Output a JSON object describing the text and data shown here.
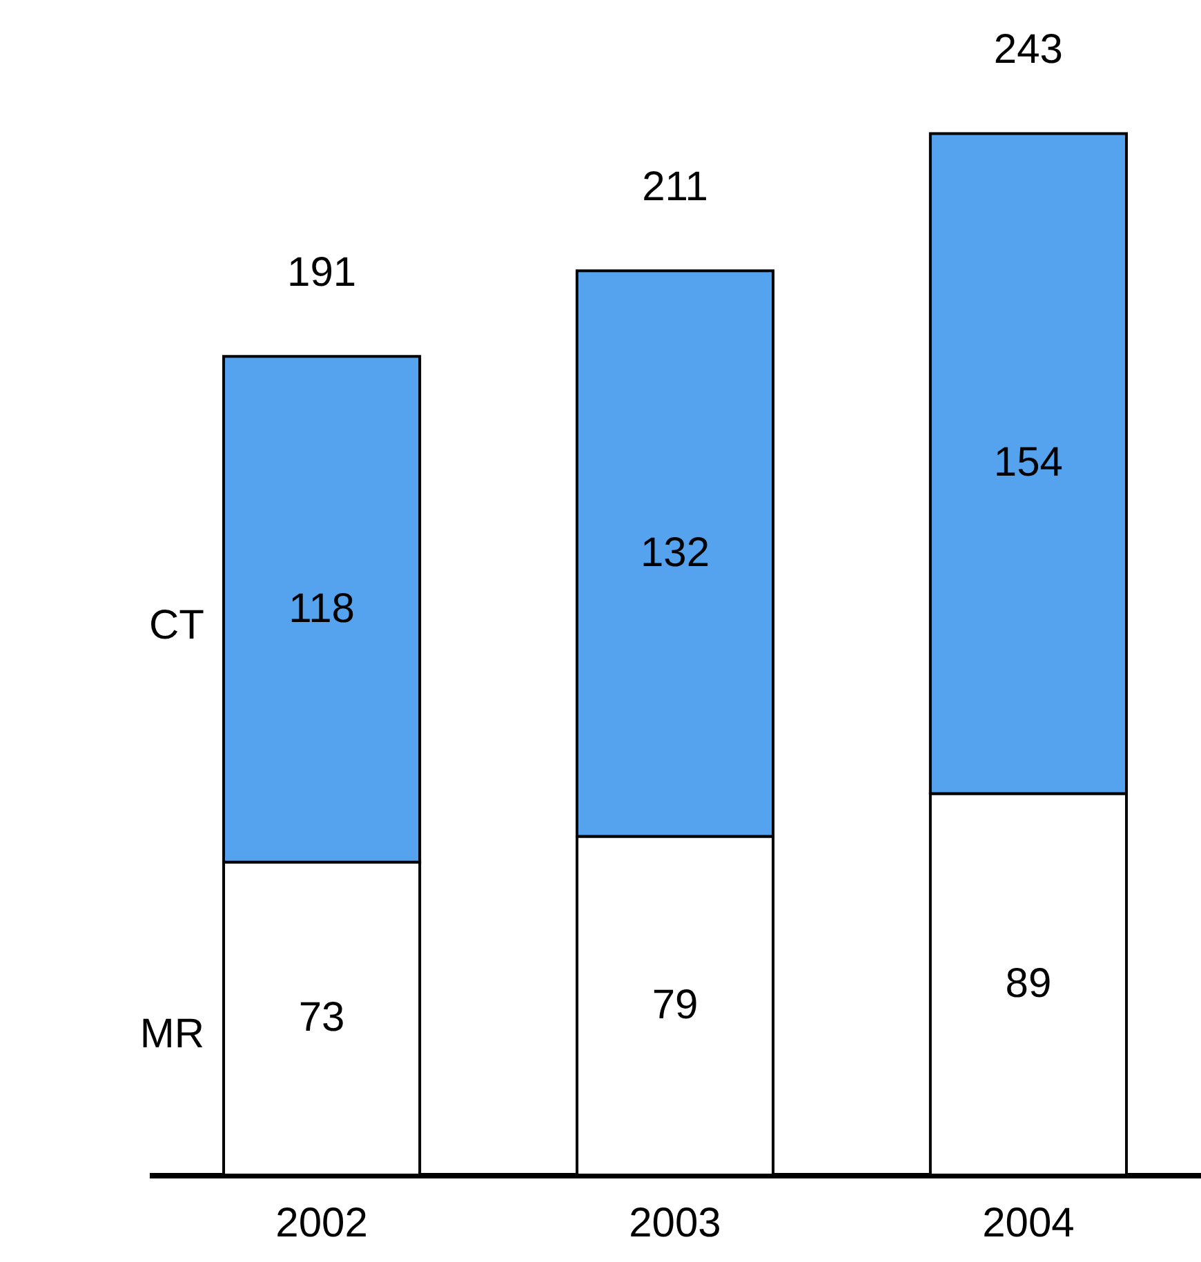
{
  "chart_data": {
    "type": "bar",
    "stacked": true,
    "categories": [
      "2002",
      "2003",
      "2004"
    ],
    "series": [
      {
        "name": "MR",
        "color": "#ffffff",
        "values": [
          73,
          79,
          89
        ]
      },
      {
        "name": "CT",
        "color": "#55a3ee",
        "values": [
          118,
          132,
          154
        ]
      }
    ],
    "data_labels": true,
    "totals": [
      "191",
      "211",
      "243"
    ],
    "legend": "left",
    "tick_labels": "x"
  }
}
